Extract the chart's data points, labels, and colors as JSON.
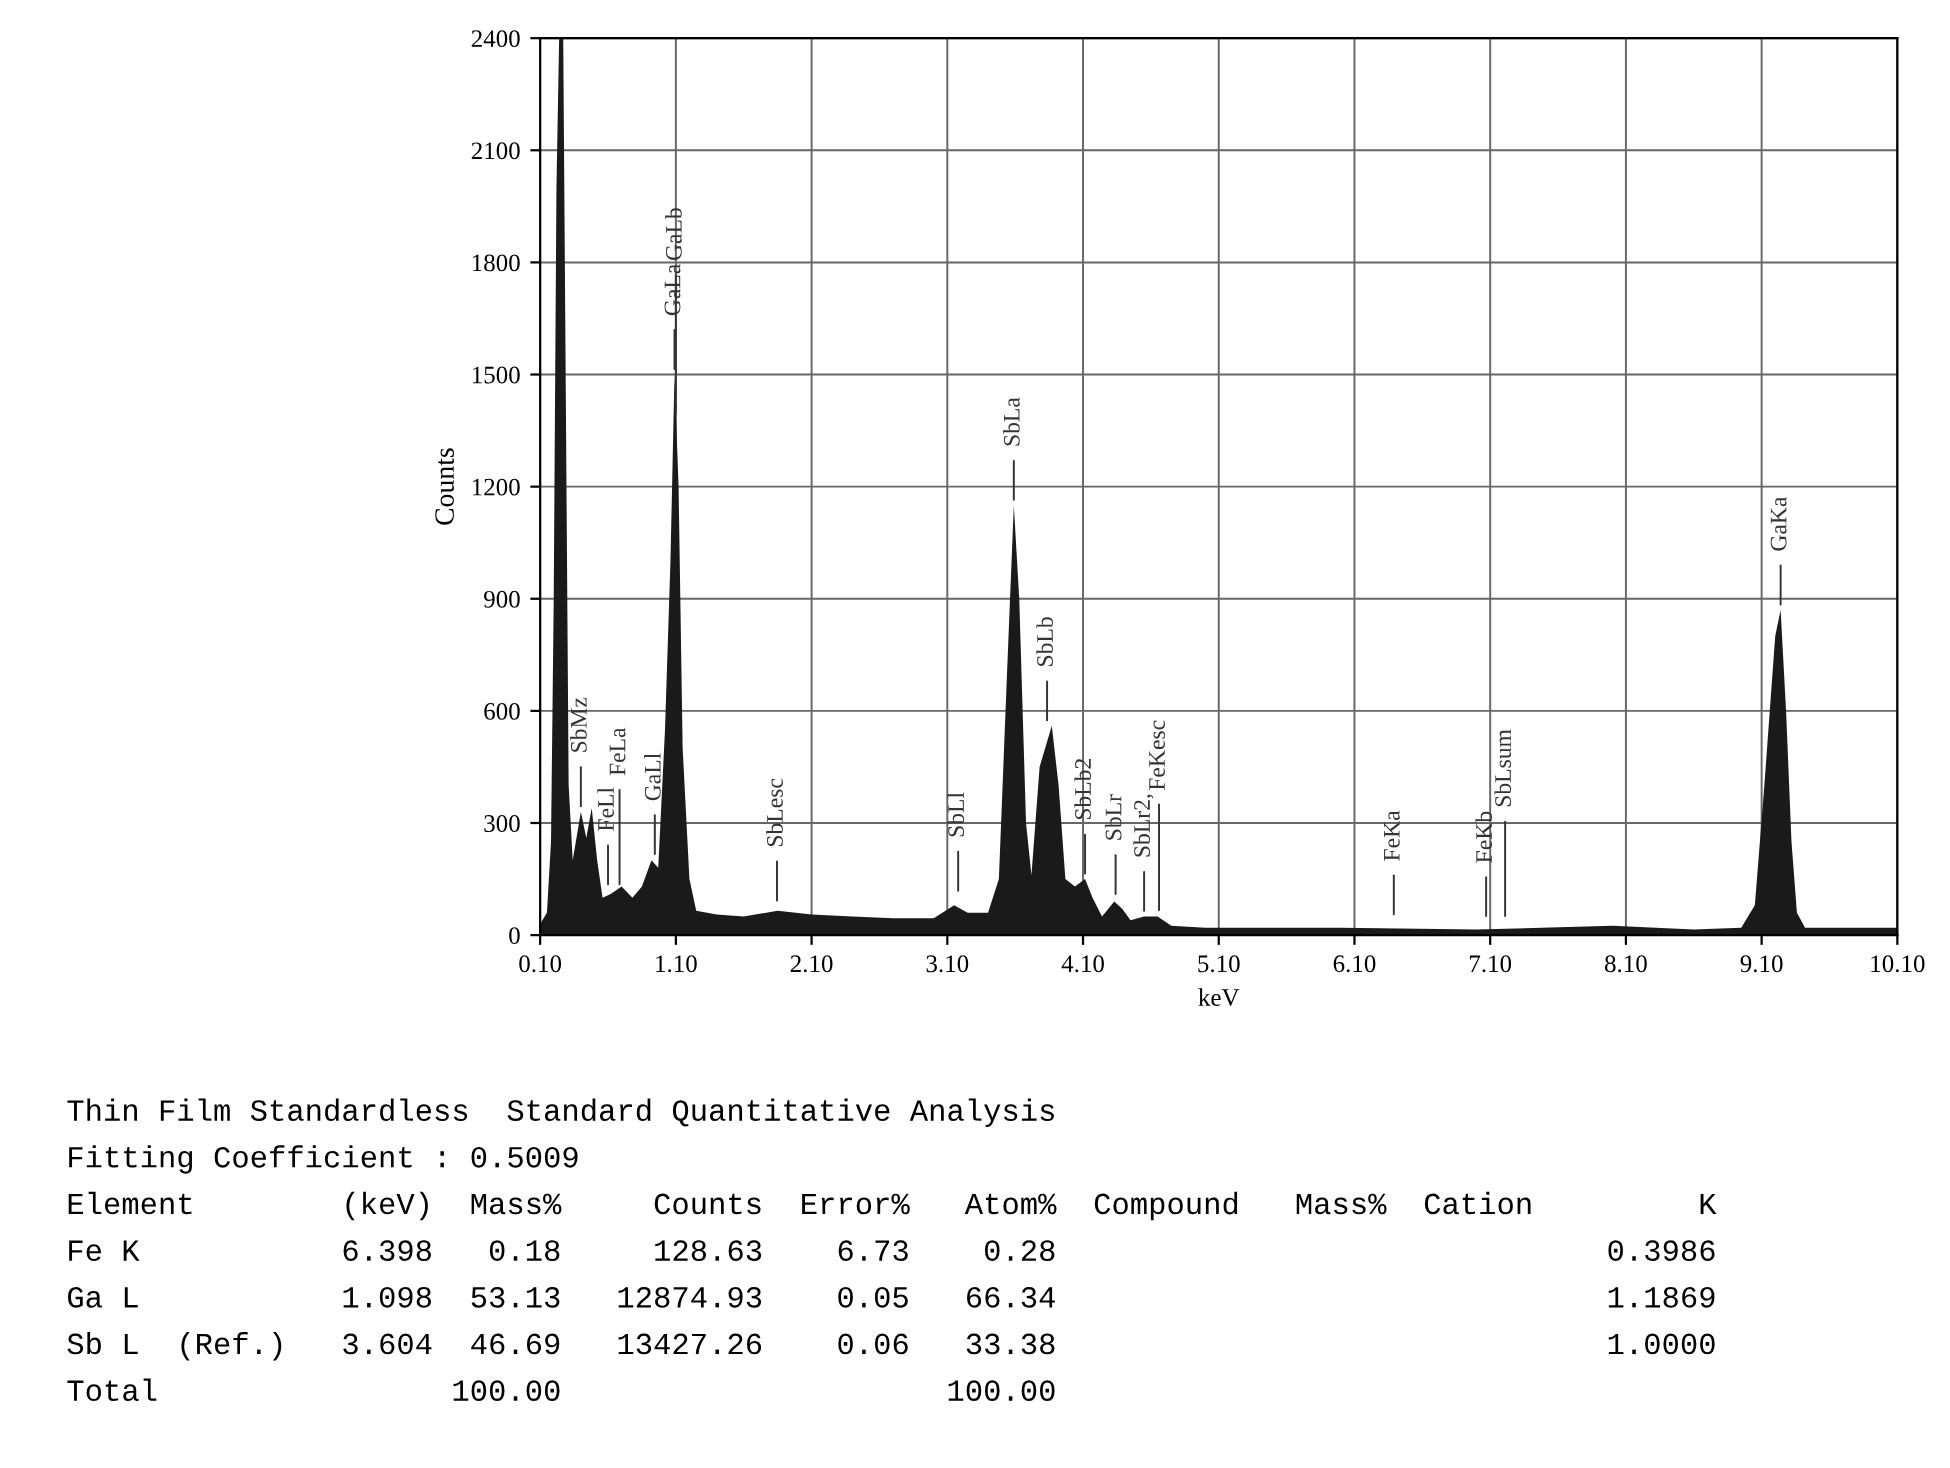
{
  "chart_data": {
    "type": "area",
    "xlabel": "keV",
    "ylabel": "Counts",
    "xlim": [
      0.1,
      10.1
    ],
    "ylim": [
      0,
      2400
    ],
    "xticks": [
      {
        "value": 0.1,
        "label": "0.10"
      },
      {
        "value": 1.1,
        "label": "1.10"
      },
      {
        "value": 2.1,
        "label": "2.10"
      },
      {
        "value": 3.1,
        "label": "3.10"
      },
      {
        "value": 4.1,
        "label": "4.10"
      },
      {
        "value": 5.1,
        "label": "5.10"
      },
      {
        "value": 6.1,
        "label": "6.10"
      },
      {
        "value": 7.1,
        "label": "7.10"
      },
      {
        "value": 8.1,
        "label": "8.10"
      },
      {
        "value": 9.1,
        "label": "9.10"
      },
      {
        "value": 10.1,
        "label": "10.10"
      }
    ],
    "yticks": [
      0,
      300,
      600,
      900,
      1200,
      1500,
      1800,
      2100,
      2400
    ],
    "grid": true,
    "series": [
      {
        "color": "#1a1a1a",
        "x": [
          0.1,
          0.15,
          0.18,
          0.2,
          0.22,
          0.24,
          0.27,
          0.29,
          0.31,
          0.34,
          0.4,
          0.44,
          0.48,
          0.52,
          0.56,
          0.62,
          0.7,
          0.78,
          0.85,
          0.92,
          0.97,
          1.02,
          1.06,
          1.09,
          1.12,
          1.15,
          1.2,
          1.25,
          1.4,
          1.6,
          1.85,
          2.1,
          2.4,
          2.7,
          3.0,
          3.15,
          3.25,
          3.4,
          3.48,
          3.54,
          3.59,
          3.63,
          3.68,
          3.72,
          3.78,
          3.87,
          3.92,
          3.97,
          4.04,
          4.115,
          4.17,
          4.24,
          4.33,
          4.39,
          4.45,
          4.55,
          4.65,
          4.75,
          5.0,
          6.0,
          7.0,
          8.0,
          8.6,
          8.95,
          9.05,
          9.12,
          9.2,
          9.24,
          9.28,
          9.32,
          9.36,
          9.42,
          10.1
        ],
        "values": [
          30,
          60,
          250,
          900,
          2000,
          2400,
          2400,
          1400,
          400,
          200,
          330,
          260,
          340,
          200,
          100,
          110,
          130,
          100,
          130,
          200,
          180,
          550,
          1000,
          1500,
          1200,
          500,
          150,
          65,
          55,
          50,
          65,
          55,
          50,
          45,
          45,
          80,
          60,
          60,
          150,
          700,
          1150,
          900,
          300,
          160,
          450,
          560,
          400,
          150,
          130,
          150,
          100,
          50,
          90,
          70,
          40,
          50,
          50,
          25,
          20,
          20,
          15,
          25,
          15,
          20,
          80,
          400,
          800,
          870,
          600,
          250,
          60,
          20,
          20
        ]
      }
    ],
    "annotations": [
      {
        "text": "SbMz",
        "x": 0.4,
        "y": 330
      },
      {
        "text": "FeLl",
        "x": 0.6,
        "y": 121
      },
      {
        "text": "FeLa",
        "x": 0.685,
        "y": 121
      },
      {
        "text": "GaLl",
        "x": 0.945,
        "y": 202
      },
      {
        "text": "GaLa",
        "x": 1.09,
        "y": 1500
      },
      {
        "text": "GaLb",
        "x": 1.1,
        "y": 1380
      },
      {
        "text": "SbLesc",
        "x": 1.845,
        "y": 78
      },
      {
        "text": "SbLl",
        "x": 3.18,
        "y": 104
      },
      {
        "text": "SbLa",
        "x": 3.59,
        "y": 1150
      },
      {
        "text": "SbLb",
        "x": 3.835,
        "y": 560
      },
      {
        "text": "SbLb2",
        "x": 4.115,
        "y": 150
      },
      {
        "text": "SbLr",
        "x": 4.34,
        "y": 95
      },
      {
        "text": "SbLr2,",
        "x": 4.55,
        "y": 50
      },
      {
        "text": "FeKesc",
        "x": 4.66,
        "y": 52
      },
      {
        "text": "FeKa",
        "x": 6.39,
        "y": 41
      },
      {
        "text": "FeKb",
        "x": 7.07,
        "y": 36
      },
      {
        "text": "SbLsum",
        "x": 7.21,
        "y": 36
      },
      {
        "text": "GaKa",
        "x": 9.24,
        "y": 870
      },
      "Thin Film Standardless  Standard Quantitative Analysis",
      "Fitting Coefficient : 0.5009",
      "Element        (keV)  Mass%     Counts  Error%   Atom%  Compound   Mass%  Cation         K",
      "Fe K           6.398   0.18     128.63    6.73    0.28                              0.3986",
      "Ga L           1.098  53.13   12874.93    0.05   66.34                              1.1869",
      "Sb L  (Ref.)   3.604  46.69   13427.26    0.06   33.38                              1.0000",
      "Total                100.00                     100.00"
    ]
  }
}
